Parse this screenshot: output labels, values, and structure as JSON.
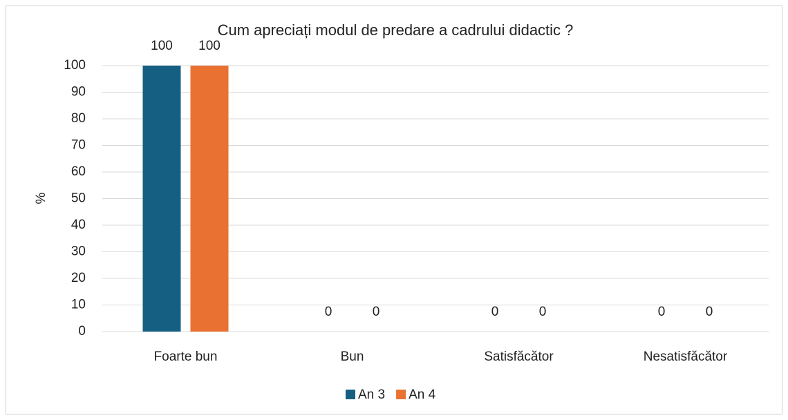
{
  "chart_data": {
    "type": "bar",
    "title": "Cum apreciați modul de predare a cadrului didactic ?",
    "y_label": "%",
    "categories": [
      "Foarte bun",
      "Bun",
      "Satisfăcător",
      "Nesatisfăcător"
    ],
    "series": [
      {
        "name": "An 3",
        "color": "#156082",
        "values": [
          100,
          0,
          0,
          0
        ]
      },
      {
        "name": "An 4",
        "color": "#e97132",
        "values": [
          100,
          0,
          0,
          0
        ]
      }
    ],
    "ylim": [
      0,
      100
    ],
    "yticks": [
      0,
      10,
      20,
      30,
      40,
      50,
      60,
      70,
      80,
      90,
      100
    ],
    "grid": true,
    "legend": "bottom"
  }
}
